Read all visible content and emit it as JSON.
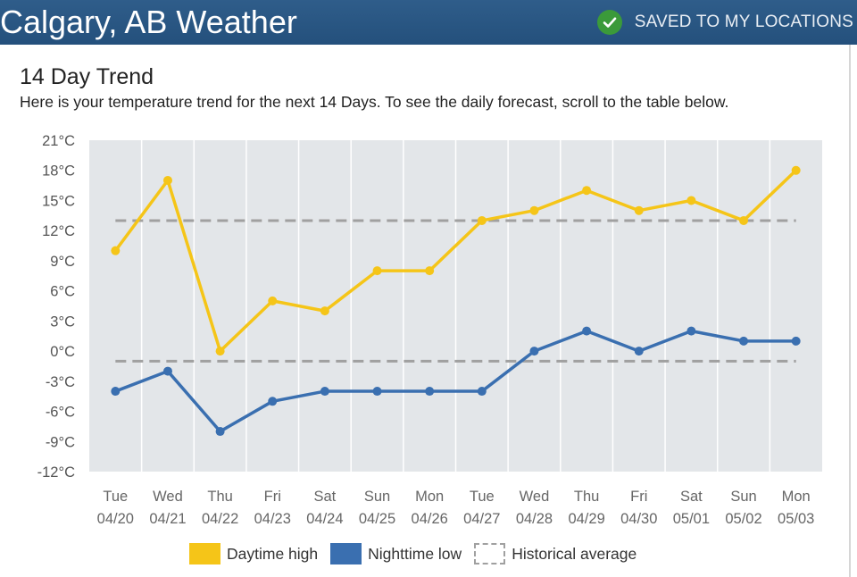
{
  "header": {
    "title": "Calgary, AB Weather",
    "saved_label": "SAVED TO MY LOCATIONS",
    "check_icon": "check-circle-icon",
    "check_color": "#3b9a3a"
  },
  "section": {
    "title": "14 Day Trend",
    "subtitle": "Here is your temperature trend for the next 14 Days. To see the daily forecast, scroll to the table below."
  },
  "legend": {
    "high_label": "Daytime high",
    "low_label": "Nighttime low",
    "avg_label": "Historical average"
  },
  "colors": {
    "high": "#f5c518",
    "low": "#3a6fb0",
    "average": "#a0a0a0",
    "plot_bg": "#e3e6e9"
  },
  "chart_data": {
    "type": "line",
    "x_days": [
      "Tue",
      "Wed",
      "Thu",
      "Fri",
      "Sat",
      "Sun",
      "Mon",
      "Tue",
      "Wed",
      "Thu",
      "Fri",
      "Sat",
      "Sun",
      "Mon"
    ],
    "x_dates": [
      "04/20",
      "04/21",
      "04/22",
      "04/23",
      "04/24",
      "04/25",
      "04/26",
      "04/27",
      "04/28",
      "04/29",
      "04/30",
      "05/01",
      "05/02",
      "05/03"
    ],
    "y_ticks": [
      "21°C",
      "18°C",
      "15°C",
      "12°C",
      "9°C",
      "6°C",
      "3°C",
      "0°C",
      "-3°C",
      "-6°C",
      "-9°C",
      "-12°C"
    ],
    "ylim": [
      -12,
      21
    ],
    "y_step": 3,
    "grid": true,
    "series": [
      {
        "name": "Daytime high",
        "values": [
          10,
          17,
          0,
          5,
          4,
          8,
          8,
          13,
          14,
          16,
          14,
          15,
          13,
          18
        ]
      },
      {
        "name": "Nighttime low",
        "values": [
          -4,
          -2,
          -8,
          -5,
          -4,
          -4,
          -4,
          -4,
          0,
          2,
          0,
          2,
          1,
          1
        ]
      }
    ],
    "historical_average": {
      "name": "Historical average",
      "high": 13,
      "low": -1
    },
    "legend_position": "bottom"
  }
}
